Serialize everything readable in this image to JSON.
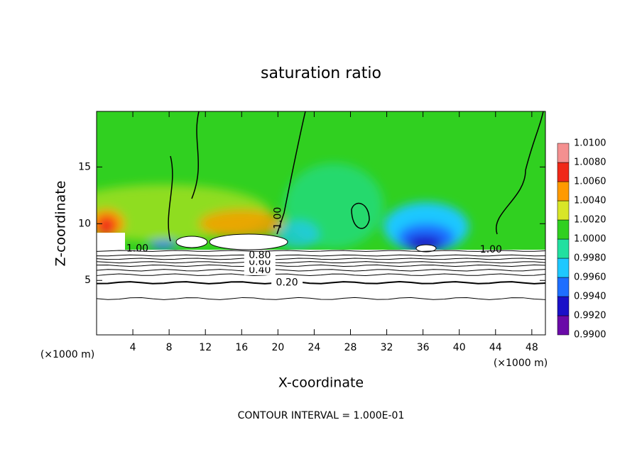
{
  "chart_data": {
    "type": "contour",
    "title": "saturation ratio",
    "x_label": "X-coordinate",
    "y_label": "Z-coordinate",
    "x_unit_left": "(×1000 m)",
    "x_unit_right": "(×1000 m)",
    "footnote": "CONTOUR INTERVAL = 1.000E-01",
    "xlim": [
      0,
      49.5
    ],
    "xticks": [
      4,
      8,
      12,
      16,
      20,
      24,
      28,
      32,
      36,
      40,
      44,
      48
    ],
    "ylim": [
      0.2,
      19.9
    ],
    "yticks": [
      5,
      10,
      15
    ],
    "colorbar": {
      "ticks": [
        {
          "value": 0.99,
          "label": "0.9900"
        },
        {
          "value": 0.992,
          "label": "0.9920"
        },
        {
          "value": 0.994,
          "label": "0.9940"
        },
        {
          "value": 0.996,
          "label": "0.9960"
        },
        {
          "value": 0.998,
          "label": "0.9980"
        },
        {
          "value": 1.0,
          "label": "1.0000"
        },
        {
          "value": 1.002,
          "label": "1.0020"
        },
        {
          "value": 1.004,
          "label": "1.0040"
        },
        {
          "value": 1.006,
          "label": "1.0060"
        },
        {
          "value": 1.008,
          "label": "1.0080"
        },
        {
          "value": 1.01,
          "label": "1.0100"
        }
      ],
      "colors": [
        "#6a0aa8",
        "#1a10c8",
        "#1e6eff",
        "#1ec8ff",
        "#22e0a0",
        "#30d020",
        "#d8e628",
        "#ff9a00",
        "#f02818",
        "#f49090"
      ]
    },
    "contours": {
      "levels": [
        0.1,
        0.2,
        0.3,
        0.4,
        0.5,
        0.6,
        0.7,
        0.8,
        0.9
      ],
      "z": [
        3.4,
        4.8,
        5.5,
        5.9,
        6.3,
        6.6,
        6.9,
        7.2,
        7.6
      ],
      "labels": [
        null,
        "0.20",
        null,
        "0.40",
        null,
        "0.60",
        null,
        "0.80",
        null
      ],
      "label_x": [
        null,
        21,
        null,
        18,
        null,
        18,
        null,
        18,
        null
      ]
    },
    "field_labels": [
      {
        "text": "1.00",
        "x": 4.5,
        "z": 7.8
      },
      {
        "text": "1.00",
        "x": 43.5,
        "z": 7.7
      },
      {
        "text": "1.00",
        "x": 20,
        "z": 10.5
      }
    ]
  }
}
